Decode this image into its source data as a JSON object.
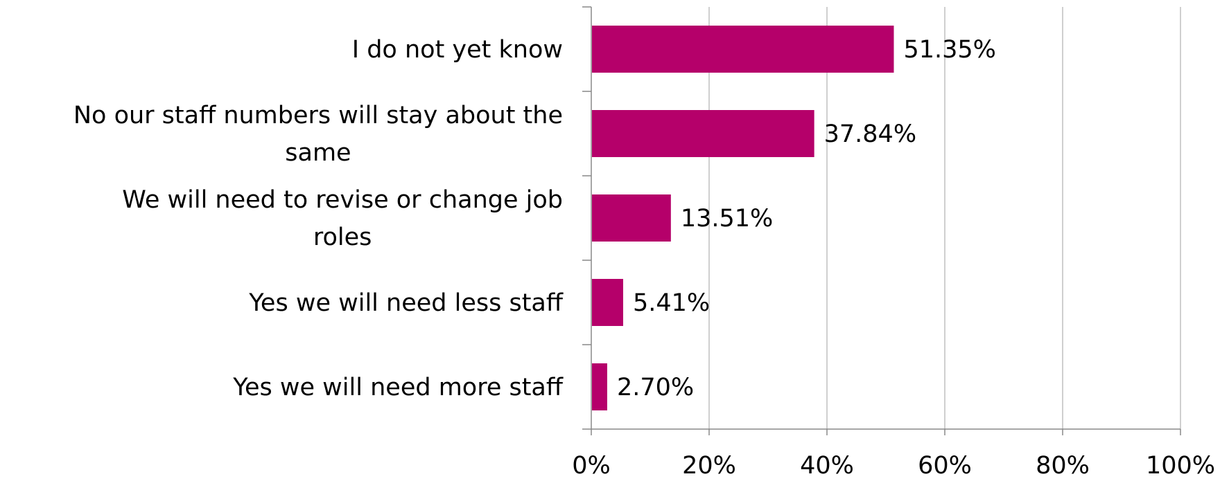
{
  "chart_data": {
    "type": "bar",
    "orientation": "horizontal",
    "categories": [
      "I do not yet know",
      "No our staff numbers will stay about the same",
      "We will need to revise or change job roles",
      "Yes we will need less staff",
      "Yes we will need more staff"
    ],
    "category_lines": [
      [
        "I do not yet know"
      ],
      [
        "No our staff numbers will stay about the",
        "same"
      ],
      [
        "We will need to revise or change job",
        "roles"
      ],
      [
        "Yes we will need less staff"
      ],
      [
        "Yes we will need more staff"
      ]
    ],
    "values": [
      51.35,
      37.84,
      13.51,
      5.41,
      2.7
    ],
    "data_labels": [
      "51.35%",
      "37.84%",
      "13.51%",
      "5.41%",
      "2.70%"
    ],
    "x_ticks": [
      "0%",
      "20%",
      "40%",
      "60%",
      "80%",
      "100%"
    ],
    "xlim": [
      0,
      100
    ],
    "grid": true,
    "legend": "none",
    "title": "",
    "xlabel": "",
    "ylabel": "",
    "colors": {
      "bar": "#b5006a",
      "grid": "#bfbfbf",
      "axis": "#888888",
      "text": "#000000"
    }
  }
}
